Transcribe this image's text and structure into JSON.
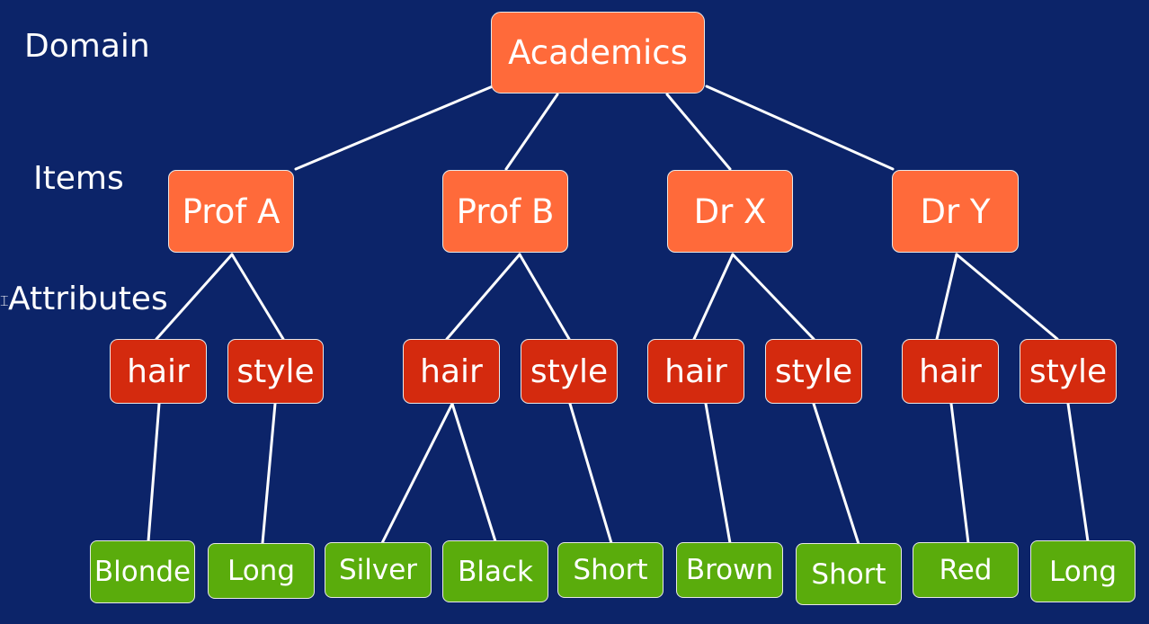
{
  "levels": {
    "domain": "Domain",
    "items": "Items",
    "attributes": "Attributes"
  },
  "colors": {
    "background": "#0c2469",
    "domain_items": "#ff6a3a",
    "attributes": "#d42a0e",
    "values": "#5aac0c",
    "edges": "#ffffff"
  },
  "tree": {
    "root": "Academics",
    "items": [
      {
        "label": "Prof A",
        "attributes": [
          {
            "label": "hair",
            "values": [
              "Blonde"
            ]
          },
          {
            "label": "style",
            "values": [
              "Long"
            ]
          }
        ]
      },
      {
        "label": "Prof B",
        "attributes": [
          {
            "label": "hair",
            "values": [
              "Silver",
              "Black"
            ]
          },
          {
            "label": "style",
            "values": [
              "Short"
            ]
          }
        ]
      },
      {
        "label": "Dr X",
        "attributes": [
          {
            "label": "hair",
            "values": [
              "Brown"
            ]
          },
          {
            "label": "style",
            "values": [
              "Short"
            ]
          }
        ]
      },
      {
        "label": "Dr Y",
        "attributes": [
          {
            "label": "hair",
            "values": [
              "Red"
            ]
          },
          {
            "label": "style",
            "values": [
              "Long"
            ]
          }
        ]
      }
    ]
  }
}
